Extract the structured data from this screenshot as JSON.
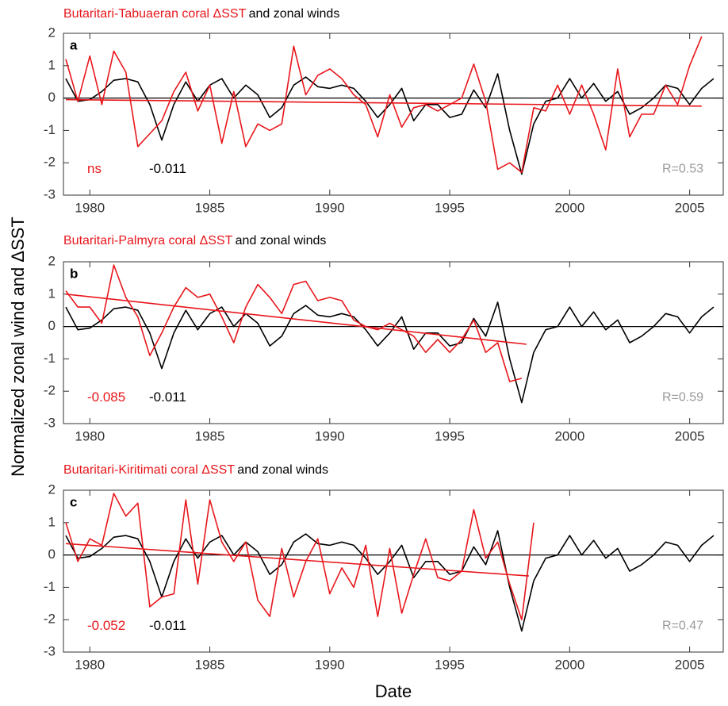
{
  "y_label": "Normalized zonal wind and ΔSST",
  "x_label": "Date",
  "chart_data": [
    {
      "type": "line",
      "title": "Butaritari-Tabuaeran coral ΔSST",
      "title_suffix": "and zonal winds",
      "title_color": "#e8161b",
      "panel_label": "a",
      "red_note": "ns",
      "black_note": "-0.011",
      "r_note": "R=0.53",
      "xlim": [
        1978.9,
        2006.4
      ],
      "xticks": [
        1980,
        1985,
        1990,
        1995,
        2000,
        2005
      ],
      "ylim": [
        -3,
        2
      ],
      "yticks": [
        -3,
        -2,
        -1,
        0,
        1,
        2
      ],
      "reference_line": 0,
      "x": [
        1979,
        1979.5,
        1980,
        1980.5,
        1981,
        1981.5,
        1982,
        1982.5,
        1983,
        1983.5,
        1984,
        1984.5,
        1985,
        1985.5,
        1986,
        1986.5,
        1987,
        1987.5,
        1988,
        1988.5,
        1989,
        1989.5,
        1990,
        1990.5,
        1991,
        1991.5,
        1992,
        1992.5,
        1993,
        1993.5,
        1994,
        1994.5,
        1995,
        1995.5,
        1996,
        1996.5,
        1997,
        1997.5,
        1998,
        1998.5,
        1999,
        1999.5,
        2000,
        2000.5,
        2001,
        2001.5,
        2002,
        2002.5,
        2003,
        2003.5,
        2004,
        2004.5,
        2005,
        2005.5,
        2006
      ],
      "series": [
        {
          "color": "#000000",
          "values": [
            0.6,
            -0.1,
            -0.05,
            0.2,
            0.55,
            0.6,
            0.5,
            -0.2,
            -1.3,
            -0.2,
            0.5,
            -0.1,
            0.4,
            0.6,
            0.0,
            0.4,
            0.1,
            -0.6,
            -0.3,
            0.4,
            0.65,
            0.35,
            0.3,
            0.4,
            0.3,
            -0.1,
            -0.6,
            -0.2,
            0.3,
            -0.7,
            -0.2,
            -0.2,
            -0.6,
            -0.5,
            0.25,
            -0.3,
            0.75,
            -1.0,
            -2.35,
            -0.8,
            -0.1,
            0.0,
            0.6,
            0.0,
            0.45,
            -0.1,
            0.2,
            -0.5,
            -0.3,
            0.0,
            0.4,
            0.3,
            -0.2,
            0.3,
            0.6
          ]
        },
        {
          "color": "#e8161b",
          "values": [
            1.2,
            -0.1,
            1.3,
            -0.2,
            1.45,
            0.8,
            -1.5,
            -1.1,
            -0.7,
            0.2,
            0.8,
            -0.4,
            0.4,
            -1.4,
            0.2,
            -1.5,
            -0.8,
            -1.0,
            -0.8,
            1.6,
            0.1,
            0.7,
            0.9,
            0.6,
            0.1,
            -0.2,
            -1.2,
            0.1,
            -0.9,
            -0.3,
            -0.2,
            -0.4,
            -0.2,
            0.0,
            1.05,
            -0.1,
            -2.2,
            -2.0,
            -2.3,
            -0.3,
            -0.4,
            0.4,
            -0.5,
            0.4,
            -0.5,
            -1.6,
            0.9,
            -1.2,
            -0.5,
            -0.5,
            0.4,
            -0.2,
            1.0,
            1.9,
            null
          ]
        },
        {
          "color": "#e8161b",
          "x": [
            1979,
            2005.5
          ],
          "values": [
            -0.05,
            -0.25
          ]
        }
      ]
    },
    {
      "type": "line",
      "title": "Butaritari-Palmyra coral ΔSST",
      "title_suffix": "and zonal winds",
      "title_color": "#e8161b",
      "panel_label": "b",
      "red_note": "-0.085",
      "black_note": "-0.011",
      "r_note": "R=0.59",
      "xlim": [
        1978.9,
        2006.4
      ],
      "xticks": [
        1980,
        1985,
        1990,
        1995,
        2000,
        2005
      ],
      "ylim": [
        -3,
        2
      ],
      "yticks": [
        -3,
        -2,
        -1,
        0,
        1,
        2
      ],
      "reference_line": 0,
      "x": [
        1979,
        1979.5,
        1980,
        1980.5,
        1981,
        1981.5,
        1982,
        1982.5,
        1983,
        1983.5,
        1984,
        1984.5,
        1985,
        1985.5,
        1986,
        1986.5,
        1987,
        1987.5,
        1988,
        1988.5,
        1989,
        1989.5,
        1990,
        1990.5,
        1991,
        1991.5,
        1992,
        1992.5,
        1993,
        1993.5,
        1994,
        1994.5,
        1995,
        1995.5,
        1996,
        1996.5,
        1997,
        1997.5,
        1998,
        1998.5,
        1999,
        1999.5,
        2000,
        2000.5,
        2001,
        2001.5,
        2002,
        2002.5,
        2003,
        2003.5,
        2004,
        2004.5,
        2005,
        2005.5,
        2006
      ],
      "series": [
        {
          "color": "#000000",
          "values": [
            0.6,
            -0.1,
            -0.05,
            0.2,
            0.55,
            0.6,
            0.5,
            -0.2,
            -1.3,
            -0.2,
            0.5,
            -0.1,
            0.4,
            0.6,
            0.0,
            0.4,
            0.1,
            -0.6,
            -0.3,
            0.4,
            0.65,
            0.35,
            0.3,
            0.4,
            0.3,
            -0.1,
            -0.6,
            -0.2,
            0.3,
            -0.7,
            -0.2,
            -0.2,
            -0.6,
            -0.5,
            0.25,
            -0.3,
            0.75,
            -1.0,
            -2.35,
            -0.8,
            -0.1,
            0.0,
            0.6,
            0.0,
            0.45,
            -0.1,
            0.2,
            -0.5,
            -0.3,
            0.0,
            0.4,
            0.3,
            -0.2,
            0.3,
            0.6
          ]
        },
        {
          "color": "#e8161b",
          "values": [
            1.1,
            0.6,
            0.6,
            0.1,
            1.9,
            0.9,
            0.3,
            -0.9,
            -0.2,
            0.6,
            1.2,
            0.9,
            1.0,
            0.3,
            -0.5,
            0.6,
            1.3,
            0.9,
            0.4,
            1.3,
            1.4,
            0.8,
            0.9,
            0.8,
            0.2,
            0.0,
            -0.1,
            0.1,
            -0.1,
            -0.3,
            -0.8,
            -0.4,
            -0.8,
            -0.4,
            0.2,
            -0.8,
            -0.5,
            -1.7,
            -1.6,
            null,
            null,
            null,
            null,
            null,
            null,
            null,
            null,
            null,
            null,
            null,
            null,
            null,
            null,
            null,
            null
          ]
        },
        {
          "color": "#e8161b",
          "x": [
            1979,
            1998.2
          ],
          "values": [
            1.0,
            -0.55
          ]
        }
      ]
    },
    {
      "type": "line",
      "title": "Butaritari-Kiritimati coral ΔSST",
      "title_suffix": "and zonal winds",
      "title_color": "#e8161b",
      "panel_label": "c",
      "red_note": "-0.052",
      "black_note": "-0.011",
      "r_note": "R=0.47",
      "xlim": [
        1978.9,
        2006.4
      ],
      "xticks": [
        1980,
        1985,
        1990,
        1995,
        2000,
        2005
      ],
      "ylim": [
        -3,
        2
      ],
      "yticks": [
        -3,
        -2,
        -1,
        0,
        1,
        2
      ],
      "reference_line": 0,
      "x": [
        1979,
        1979.5,
        1980,
        1980.5,
        1981,
        1981.5,
        1982,
        1982.5,
        1983,
        1983.5,
        1984,
        1984.5,
        1985,
        1985.5,
        1986,
        1986.5,
        1987,
        1987.5,
        1988,
        1988.5,
        1989,
        1989.5,
        1990,
        1990.5,
        1991,
        1991.5,
        1992,
        1992.5,
        1993,
        1993.5,
        1994,
        1994.5,
        1995,
        1995.5,
        1996,
        1996.5,
        1997,
        1997.5,
        1998,
        1998.5,
        1999,
        1999.5,
        2000,
        2000.5,
        2001,
        2001.5,
        2002,
        2002.5,
        2003,
        2003.5,
        2004,
        2004.5,
        2005,
        2005.5,
        2006
      ],
      "series": [
        {
          "color": "#000000",
          "values": [
            0.6,
            -0.1,
            -0.05,
            0.2,
            0.55,
            0.6,
            0.5,
            -0.2,
            -1.3,
            -0.2,
            0.5,
            -0.1,
            0.4,
            0.6,
            0.0,
            0.4,
            0.1,
            -0.6,
            -0.3,
            0.4,
            0.65,
            0.35,
            0.3,
            0.4,
            0.3,
            -0.1,
            -0.6,
            -0.2,
            0.3,
            -0.7,
            -0.2,
            -0.2,
            -0.6,
            -0.5,
            0.25,
            -0.3,
            0.75,
            -1.0,
            -2.35,
            -0.8,
            -0.1,
            0.0,
            0.6,
            0.0,
            0.45,
            -0.1,
            0.2,
            -0.5,
            -0.3,
            0.0,
            0.4,
            0.3,
            -0.2,
            0.3,
            0.6
          ]
        },
        {
          "color": "#e8161b",
          "values": [
            1.0,
            -0.2,
            0.5,
            0.3,
            1.9,
            1.2,
            1.6,
            -1.6,
            -1.3,
            -1.2,
            1.7,
            -0.9,
            1.7,
            0.4,
            -0.2,
            0.4,
            -1.4,
            -1.9,
            0.2,
            -1.3,
            -0.2,
            0.5,
            -1.2,
            -0.4,
            -1.0,
            0.3,
            -1.9,
            0.2,
            -1.8,
            -0.6,
            0.5,
            -0.7,
            -0.8,
            -0.5,
            1.4,
            -0.1,
            0.4,
            -0.9,
            -2.0,
            1.0,
            null,
            null,
            null,
            null,
            null,
            null,
            null,
            null,
            null,
            null,
            null,
            null,
            null,
            null,
            null
          ]
        },
        {
          "color": "#e8161b",
          "x": [
            1979,
            1998.3
          ],
          "values": [
            0.35,
            -0.65
          ]
        }
      ]
    }
  ]
}
